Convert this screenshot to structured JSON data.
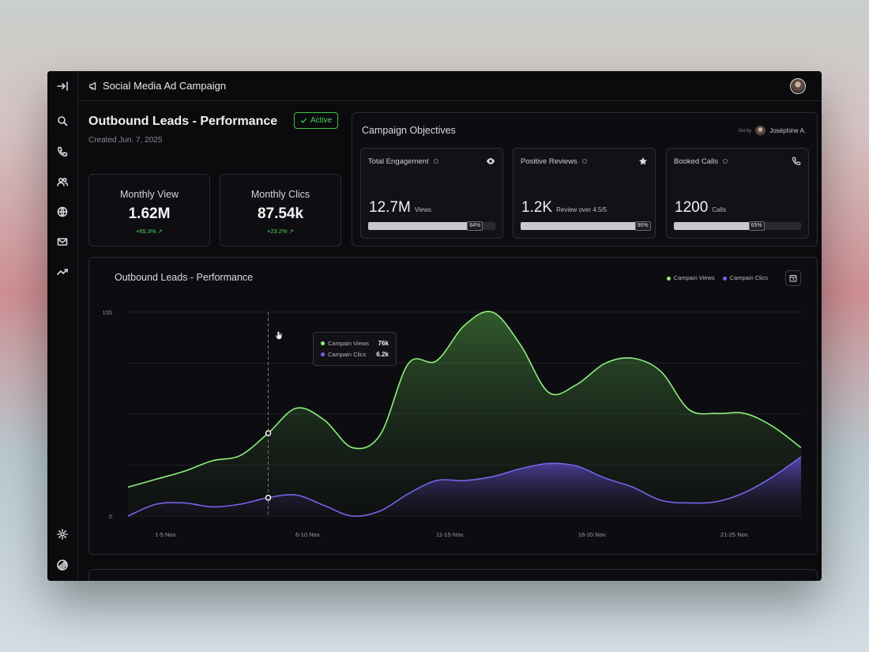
{
  "topbar": {
    "title": "Social Media Ad Campaign"
  },
  "header": {
    "title": "Outbound Leads - Performance",
    "status": "Active",
    "created": "Created Jun. 7, 2025"
  },
  "stats": [
    {
      "label": "Monthly View",
      "value": "1.62M",
      "change": "+65.3%"
    },
    {
      "label": "Monthly Clics",
      "value": "87.54k",
      "change": "+23.2%"
    }
  ],
  "objectives": {
    "title": "Campaign Objectives",
    "set_by_prefix": "Set by",
    "set_by_name": "Joséphine A.",
    "cards": [
      {
        "title": "Total Engagement",
        "value": "12.7M",
        "unit": "Views",
        "percent": 84,
        "percent_label": "84%",
        "icon": "eye-icon"
      },
      {
        "title": "Positive Reviews",
        "value": "1.2K",
        "unit": "Review over 4.5/5",
        "percent": 96,
        "percent_label": "96%",
        "icon": "star-icon"
      },
      {
        "title": "Booked Calls",
        "value": "1200",
        "unit": "Calls",
        "percent": 65,
        "percent_label": "65%",
        "icon": "phone-icon"
      }
    ]
  },
  "tooltip": {
    "views_label": "Campain Views",
    "views_value": "76k",
    "clics_label": "Campain Clics",
    "clics_value": "6.2k"
  },
  "colors": {
    "views": "#8ef07a",
    "clics": "#7b62e8",
    "accent_green": "#4ed35a"
  },
  "chart_data": {
    "type": "area",
    "title": "Outbound Leads - Performance",
    "categories": [
      "1-5 Nov.",
      "6-10 Nov.",
      "11-15 Nov.",
      "16-20 Nov.",
      "21-25 Nov."
    ],
    "x": [
      0,
      1,
      2,
      3,
      4,
      5,
      6,
      7,
      8,
      9,
      10,
      11,
      12,
      13,
      14,
      15,
      16,
      17,
      18,
      19,
      20,
      21,
      22,
      23,
      24
    ],
    "ylim": [
      0,
      155
    ],
    "yticks": [
      "155",
      "0"
    ],
    "legend_position": "top-right",
    "grid": true,
    "series": [
      {
        "name": "Campain Views",
        "color": "#8ef07a",
        "values": [
          22,
          28,
          34,
          42,
          46,
          63,
          82,
          73,
          52,
          62,
          116,
          118,
          145,
          155,
          130,
          94,
          100,
          116,
          120,
          110,
          81,
          78,
          78,
          68,
          52
        ]
      },
      {
        "name": "Campain Clics",
        "color": "#7b62e8",
        "values": [
          0,
          9,
          10,
          7,
          9,
          14,
          16,
          8,
          0,
          4,
          17,
          27,
          27,
          30,
          36,
          40,
          38,
          29,
          22,
          12,
          10,
          11,
          18,
          30,
          45
        ]
      }
    ]
  }
}
